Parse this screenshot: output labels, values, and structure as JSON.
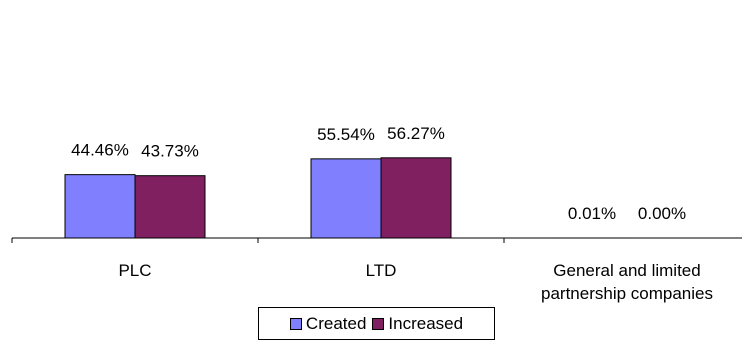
{
  "chart_data": {
    "type": "bar",
    "categories": [
      "PLC",
      "LTD",
      "General and limited partnership companies"
    ],
    "category_lines": [
      [
        "PLC"
      ],
      [
        "LTD"
      ],
      [
        "General and limited",
        "partnership companies"
      ]
    ],
    "series": [
      {
        "name": "Created",
        "values": [
          44.46,
          55.54,
          0.01
        ],
        "labels": [
          "44.46%",
          "55.54%",
          "0.01%"
        ],
        "color": "#8080FF"
      },
      {
        "name": "Increased",
        "values": [
          43.73,
          56.27,
          0.0
        ],
        "labels": [
          "43.73%",
          "56.27%",
          "0.00%"
        ],
        "color": "#802060"
      }
    ],
    "ylim": [
      0,
      160
    ],
    "grid": false,
    "legend_position": "bottom"
  }
}
